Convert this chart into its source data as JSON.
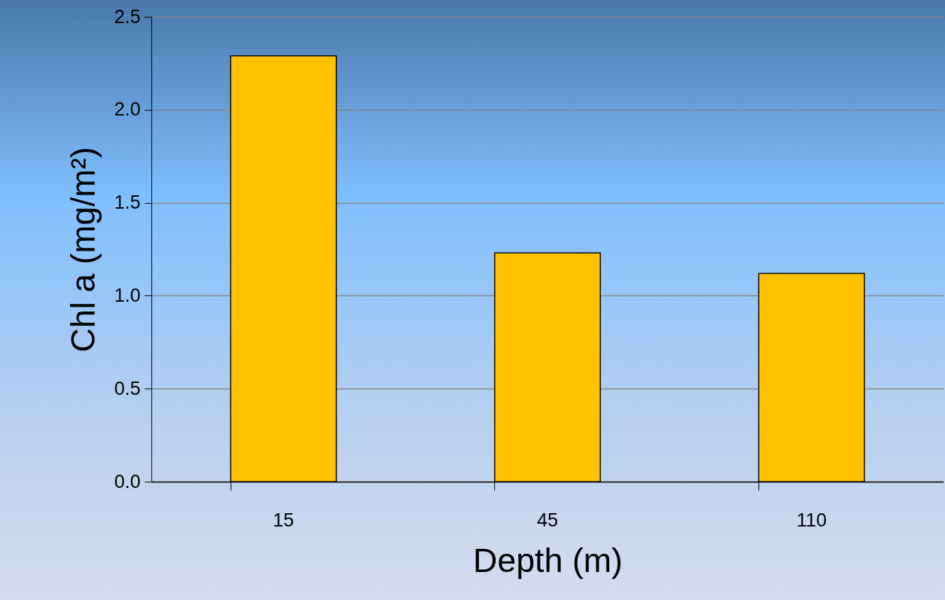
{
  "chart_data": {
    "type": "bar",
    "xlabel": "Depth (m)",
    "ylabel": "Chl a (mg/m²)",
    "categories": [
      "15",
      "45",
      "110"
    ],
    "values": [
      2.29,
      1.23,
      1.12
    ],
    "color": "#ffc000",
    "ylim": [
      0,
      2.5
    ],
    "yticks": [
      {
        "value": 0,
        "label": "0.0"
      },
      {
        "value": 0.5,
        "label": "0.5"
      },
      {
        "value": 1,
        "label": "1.0"
      },
      {
        "value": 1.5,
        "label": "1.5"
      },
      {
        "value": 2,
        "label": "2.0"
      },
      {
        "value": 2.5,
        "label": "2.5"
      }
    ],
    "grid": "y"
  }
}
